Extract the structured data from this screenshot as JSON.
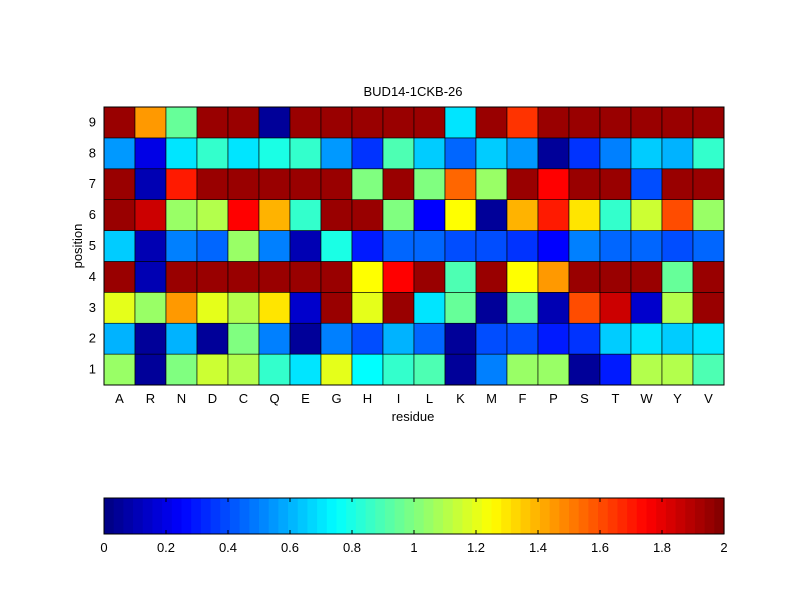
{
  "chart_data": [
    {
      "type": "heatmap",
      "title": "BUD14-1CKB-26",
      "xlabel": "residue",
      "ylabel": "position",
      "x": [
        "A",
        "R",
        "N",
        "D",
        "C",
        "Q",
        "E",
        "G",
        "H",
        "I",
        "L",
        "K",
        "M",
        "F",
        "P",
        "S",
        "T",
        "W",
        "Y",
        "V"
      ],
      "y": [
        "1",
        "2",
        "3",
        "4",
        "5",
        "6",
        "7",
        "8",
        "9"
      ],
      "values": [
        [
          1.05,
          0.05,
          1.0,
          1.15,
          1.1,
          0.85,
          0.7,
          1.2,
          0.75,
          0.85,
          0.9,
          0.05,
          0.5,
          1.05,
          1.05,
          0.05,
          0.3,
          1.1,
          1.1,
          0.9
        ],
        [
          0.6,
          0.05,
          0.6,
          0.05,
          1.0,
          0.5,
          0.05,
          0.5,
          0.4,
          0.6,
          0.45,
          0.05,
          0.4,
          0.4,
          0.3,
          0.35,
          0.65,
          0.7,
          0.65,
          0.7
        ],
        [
          1.2,
          1.05,
          1.45,
          1.2,
          1.1,
          1.3,
          0.15,
          1.95,
          1.2,
          1.95,
          0.7,
          0.95,
          0.05,
          0.95,
          0.1,
          1.6,
          1.85,
          0.15,
          1.1,
          1.95
        ],
        [
          1.95,
          0.1,
          1.95,
          1.95,
          1.95,
          1.95,
          1.95,
          1.95,
          1.25,
          1.75,
          1.95,
          0.9,
          1.95,
          1.25,
          1.45,
          1.95,
          1.95,
          1.95,
          0.95,
          1.95
        ],
        [
          0.65,
          0.1,
          0.5,
          0.45,
          1.05,
          0.5,
          0.1,
          0.8,
          0.3,
          0.45,
          0.45,
          0.4,
          0.4,
          0.35,
          0.25,
          0.5,
          0.45,
          0.45,
          0.4,
          0.45
        ],
        [
          1.95,
          1.85,
          1.05,
          1.1,
          1.75,
          1.4,
          0.85,
          1.95,
          1.95,
          1.0,
          0.25,
          1.25,
          0.05,
          1.4,
          1.7,
          1.3,
          0.85,
          1.15,
          1.6,
          1.05
        ],
        [
          1.95,
          0.1,
          1.7,
          1.95,
          1.95,
          1.95,
          1.95,
          1.95,
          1.0,
          1.95,
          1.0,
          1.55,
          1.05,
          1.95,
          1.75,
          1.95,
          1.95,
          0.4,
          1.95,
          1.95
        ],
        [
          0.55,
          0.2,
          0.7,
          0.85,
          0.7,
          0.8,
          0.85,
          0.55,
          0.35,
          0.9,
          0.65,
          0.45,
          0.65,
          0.55,
          0.05,
          0.35,
          0.5,
          0.65,
          0.6,
          0.85
        ],
        [
          1.95,
          1.45,
          0.95,
          1.95,
          1.95,
          0.05,
          1.95,
          1.95,
          1.95,
          1.95,
          1.95,
          0.7,
          1.95,
          1.65,
          1.95,
          1.95,
          1.95,
          1.95,
          1.95,
          1.95
        ]
      ],
      "colormap": "jet",
      "clim": [
        0,
        2
      ]
    },
    {
      "type": "colorbar",
      "colormap": "jet",
      "range": [
        0,
        2
      ],
      "tick_labels": [
        "0",
        "0.2",
        "0.4",
        "0.6",
        "0.8",
        "1",
        "1.2",
        "1.4",
        "1.6",
        "1.8",
        "2"
      ]
    }
  ]
}
